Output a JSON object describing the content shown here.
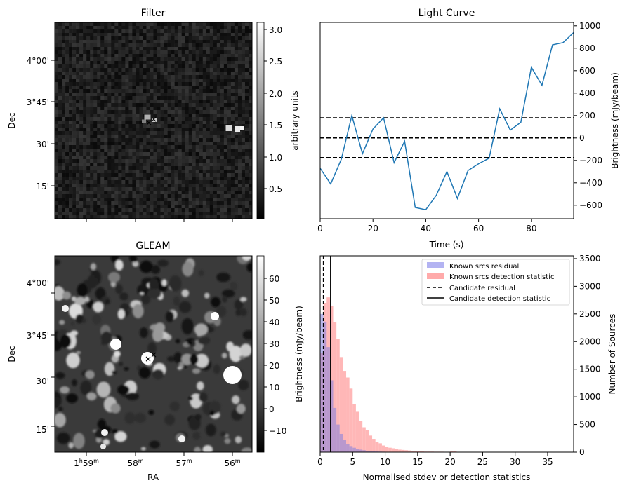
{
  "colors": {
    "line": "#1f77b4",
    "known_residual": "#b3b3f2",
    "known_detection": "#ffaaaa",
    "overlap": "#c080c0"
  },
  "panels": {
    "filter": {
      "title": "Filter",
      "ylabel": "Dec",
      "colorbar_label": "arbitrary units",
      "colorbar_ticks": [
        "0.5",
        "1.0",
        "1.5",
        "2.0",
        "2.5",
        "3.0"
      ],
      "dec_ticks": [
        "4°00'",
        "3°45'",
        "30'",
        "15'"
      ]
    },
    "gleam": {
      "title": "GLEAM",
      "ylabel": "Dec",
      "xlabel": "RA",
      "colorbar_label": "Brightness (mJy/beam)",
      "colorbar_ticks": [
        "−10",
        "0",
        "10",
        "20",
        "30",
        "40",
        "50",
        "60"
      ],
      "dec_ticks": [
        "4°00'",
        "3°45'",
        "30'",
        "15'"
      ],
      "ra_ticks": [
        {
          "main": "1",
          "sup1": "h",
          "min": "59",
          "sup2": "m"
        },
        {
          "main": "",
          "sup1": "",
          "min": "58",
          "sup2": "m"
        },
        {
          "main": "",
          "sup1": "",
          "min": "57",
          "sup2": "m"
        },
        {
          "main": "",
          "sup1": "",
          "min": "56",
          "sup2": "m"
        }
      ]
    }
  },
  "chart_data": [
    {
      "type": "line",
      "title": "Light Curve",
      "xlabel": "Time (s)",
      "ylabel": "Brightness (mJy/beam)",
      "xlim": [
        0,
        96
      ],
      "ylim": [
        -720,
        1030
      ],
      "xticks": [
        0,
        20,
        40,
        60,
        80
      ],
      "yticks": [
        -600,
        -400,
        -200,
        0,
        200,
        400,
        600,
        800,
        1000
      ],
      "x": [
        0,
        4,
        8,
        12,
        16,
        20,
        24,
        28,
        32,
        36,
        40,
        44,
        48,
        52,
        56,
        60,
        64,
        68,
        72,
        76,
        80,
        84,
        88,
        92,
        96
      ],
      "values": [
        -270,
        -410,
        -190,
        200,
        -140,
        80,
        180,
        -220,
        -30,
        -620,
        -640,
        -510,
        -300,
        -540,
        -290,
        -230,
        -180,
        260,
        70,
        140,
        630,
        470,
        830,
        850,
        940
      ],
      "hlines": [
        {
          "y": 180,
          "style": "dashed"
        },
        {
          "y": 0,
          "style": "dashed"
        },
        {
          "y": -175,
          "style": "dashed"
        }
      ]
    },
    {
      "type": "bar",
      "xlabel": "Normalised stdev or detection statistics",
      "ylabel": "Number of Sources",
      "xlim": [
        0,
        39
      ],
      "ylim": [
        0,
        3550
      ],
      "xticks": [
        0,
        5,
        10,
        15,
        20,
        25,
        30,
        35
      ],
      "yticks": [
        0,
        500,
        1000,
        1500,
        2000,
        2500,
        3000,
        3500
      ],
      "bin_width": 0.5,
      "series": [
        {
          "name": "Known srcs residual",
          "bin_start": 0,
          "values": [
            2500,
            2360,
            1900,
            1300,
            800,
            500,
            330,
            220,
            150,
            110,
            80,
            60,
            45,
            35,
            25,
            20,
            15,
            12,
            10,
            8,
            6,
            5,
            4,
            3,
            2,
            2,
            1,
            1,
            1,
            1
          ]
        },
        {
          "name": "Known srcs detection statistic",
          "bin_start": 0,
          "values": [
            1800,
            2700,
            2800,
            2650,
            2350,
            2050,
            1720,
            1470,
            1350,
            1150,
            870,
            730,
            560,
            450,
            400,
            300,
            240,
            180,
            160,
            120,
            100,
            80,
            70,
            60,
            45,
            40,
            35,
            30,
            20,
            20,
            15,
            15,
            10,
            10,
            10,
            8,
            8,
            8,
            5,
            5,
            20,
            20,
            5,
            5,
            3,
            3,
            3,
            3,
            2,
            2,
            2,
            2,
            2,
            2
          ]
        }
      ],
      "vlines": [
        {
          "name": "Candidate residual",
          "x": 0.5,
          "style": "dashed"
        },
        {
          "name": "Candidate detection statistic",
          "x": 1.6,
          "style": "solid"
        }
      ],
      "legend": "top-right"
    }
  ]
}
